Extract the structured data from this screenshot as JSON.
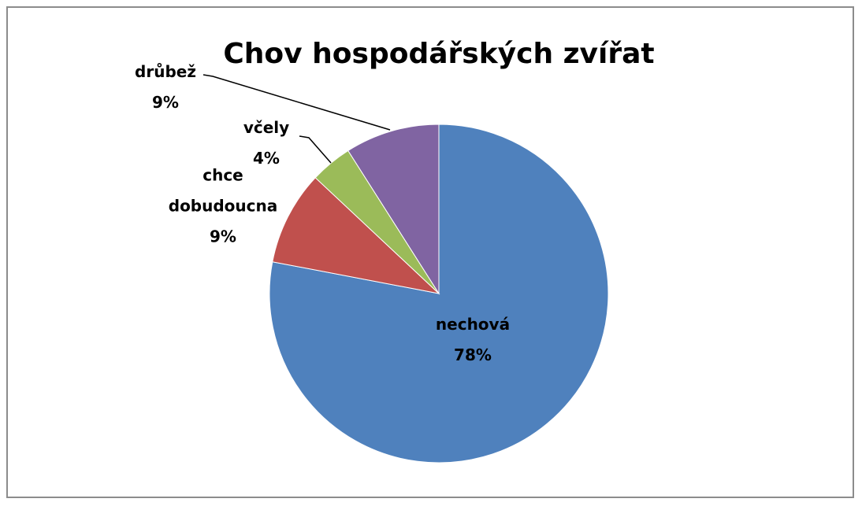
{
  "chart_data": {
    "type": "pie",
    "title": "Chov hospodářských zvířat",
    "categories": [
      "nechová",
      "chce dobudoucna",
      "včely",
      "drůbež"
    ],
    "values": [
      78,
      9,
      4,
      9
    ],
    "value_labels": [
      "78%",
      "9%",
      "4%",
      "9%"
    ],
    "colors": [
      "#4f81bd",
      "#c0504d",
      "#9bbb59",
      "#8064a2"
    ]
  }
}
